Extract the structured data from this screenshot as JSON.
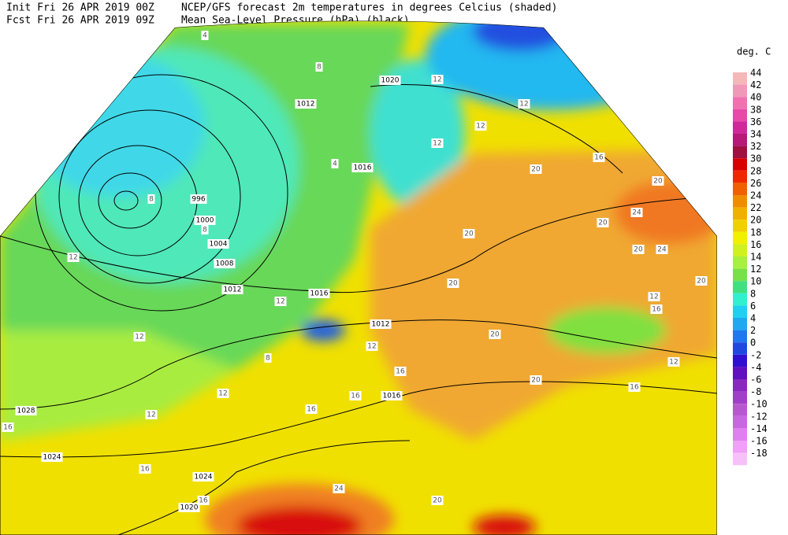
{
  "header": {
    "init": "Init  Fri 26 APR 2019 00Z",
    "fcst": "Fcst Fri 26 APR 2019 09Z",
    "title": "NCEP/GFS forecast 2m temperatures in degrees Celcius (shaded)",
    "subtitle": "Mean Sea-Level Pressure (hPa) (black)."
  },
  "legend": {
    "unit": "deg. C",
    "levels": [
      44,
      42,
      40,
      38,
      36,
      34,
      32,
      30,
      28,
      26,
      24,
      22,
      20,
      18,
      16,
      14,
      12,
      10,
      8,
      6,
      4,
      2,
      0,
      -2,
      -4,
      -6,
      -8,
      -10,
      -12,
      -14,
      -16,
      -18
    ],
    "colors": [
      "#f4b8b8",
      "#f098b8",
      "#f070b0",
      "#e848a8",
      "#d02898",
      "#b81878",
      "#a01040",
      "#d80000",
      "#f02800",
      "#f06000",
      "#f08c00",
      "#f0b000",
      "#f0d000",
      "#f0f000",
      "#d0f020",
      "#a8f040",
      "#78e048",
      "#40e080",
      "#30f0d0",
      "#20d0f0",
      "#20a8f0",
      "#2078f0",
      "#2048e0",
      "#3010d0",
      "#6010c0",
      "#8828c0",
      "#a040c8",
      "#b858d0",
      "#c868e0",
      "#e080f0",
      "#f0a0f8",
      "#f8c0f8"
    ]
  },
  "isobar_labels": [
    "1020",
    "1012",
    "1016",
    "996",
    "1000",
    "1004",
    "1008",
    "1012",
    "1016",
    "1012",
    "1016",
    "1028",
    "1024",
    "1024",
    "1020"
  ],
  "temperature_labels": [
    "4",
    "8",
    "12",
    "12",
    "12",
    "12",
    "16",
    "20",
    "20",
    "24",
    "20",
    "20",
    "24",
    "20",
    "12",
    "16",
    "12",
    "16",
    "20",
    "20",
    "20",
    "20",
    "12",
    "12",
    "12",
    "12",
    "12",
    "16",
    "16",
    "16",
    "16",
    "16",
    "16",
    "24",
    "20",
    "8",
    "8",
    "4",
    "8",
    "12"
  ]
}
